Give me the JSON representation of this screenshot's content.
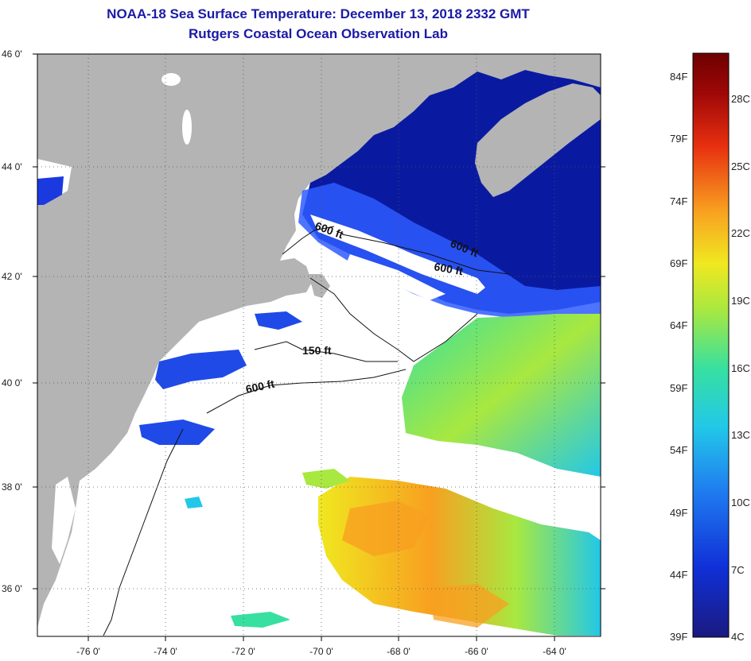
{
  "title": "NOAA-18 Sea Surface Temperature:  December 13, 2018 2332 GMT",
  "subtitle": "Rutgers Coastal Ocean Observation Lab",
  "map": {
    "lat_labels": [
      "46 0'",
      "44 0'",
      "42 0'",
      "40 0'",
      "38 0'",
      "36 0'"
    ],
    "lon_labels": [
      "-76 0'",
      "-74 0'",
      "-72 0'",
      "-70 0'",
      "-68 0'",
      "-66 0'",
      "-64 0'"
    ],
    "contour_labels": [
      "600 ft",
      "600 ft",
      "600 ft",
      "150 ft",
      "600 ft"
    ],
    "colors": {
      "land": "#b4b4b4",
      "cloud": "#ffffff",
      "cold_water": "#0a1aa0",
      "shelf_water": "#2e5cff"
    }
  },
  "colorbar": {
    "fahrenheit": [
      "84F",
      "79F",
      "74F",
      "69F",
      "64F",
      "59F",
      "54F",
      "49F",
      "44F",
      "39F"
    ],
    "celsius": [
      "28C",
      "25C",
      "22C",
      "19C",
      "16C",
      "13C",
      "10C",
      "7C",
      "4C"
    ],
    "range_celsius": [
      4,
      29
    ],
    "colors": [
      "#1a1a80",
      "#1030d8",
      "#1f7cf0",
      "#22c8e8",
      "#37e0a0",
      "#a8e840",
      "#f0e820",
      "#f8a020",
      "#e83010",
      "#a00808",
      "#6e0000"
    ]
  }
}
